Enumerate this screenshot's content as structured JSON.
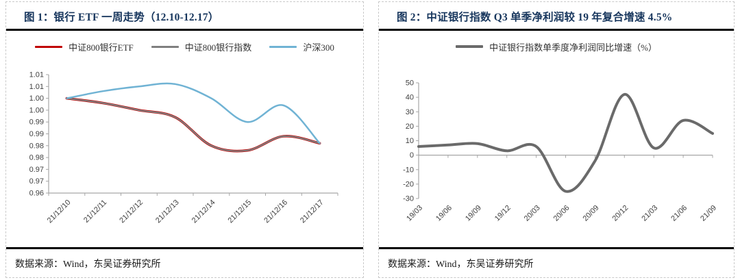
{
  "panels": [
    {
      "title": "图 1：银行 ETF 一周走势（12.10-12.17）",
      "source": "数据来源：Wind，东吴证券研究所",
      "legend": [
        {
          "label": "中证800银行ETF",
          "color": "#C00000"
        },
        {
          "label": "中证800银行指数",
          "color": "#7F7F7F"
        },
        {
          "label": "沪深300",
          "color": "#70B3D4"
        }
      ]
    },
    {
      "title": "图 2：中证银行指数 Q3 单季净利润较 19 年复合增速 4.5%",
      "source": "数据来源：Wind，东吴证券研究所",
      "legend": [
        {
          "label": "中证银行指数单季度净利润同比增速（%）",
          "color": "#6A6A6A"
        }
      ]
    }
  ],
  "chart_data": [
    {
      "type": "line",
      "title": "银行 ETF 一周走势（12.10-12.17）",
      "categories": [
        "21/12/10",
        "21/12/11",
        "21/12/12",
        "21/12/13",
        "21/12/14",
        "21/12/15",
        "21/12/16",
        "21/12/17"
      ],
      "series": [
        {
          "name": "中证800银行ETF",
          "color": "#C00000",
          "values": [
            1.0,
            0.998,
            0.995,
            0.992,
            0.98,
            0.978,
            0.984,
            0.981
          ]
        },
        {
          "name": "中证800银行指数",
          "color": "#7F7F7F",
          "values": [
            1.0,
            0.998,
            0.995,
            0.992,
            0.98,
            0.978,
            0.984,
            0.981
          ]
        },
        {
          "name": "沪深300",
          "color": "#70B3D4",
          "values": [
            1.0,
            1.003,
            1.005,
            1.006,
            1.0,
            0.99,
            0.997,
            0.981
          ]
        }
      ],
      "ylim": [
        0.96,
        1.01
      ],
      "ytick_step": 0.005,
      "ytick_labels": [
        "1.01",
        "1.01",
        "1.00",
        "1.00",
        "0.99",
        "0.99",
        "0.98",
        "0.98",
        "0.97",
        "0.97",
        "0.96"
      ],
      "smooth": true,
      "grid": false,
      "legend_position": "top",
      "xlabel": "",
      "ylabel": ""
    },
    {
      "type": "line",
      "title": "中证银行指数 Q3 单季净利润较 19 年复合增速 4.5%",
      "categories": [
        "19/03",
        "19/06",
        "19/09",
        "19/12",
        "20/03",
        "20/06",
        "20/09",
        "20/12",
        "21/03",
        "21/06",
        "21/09"
      ],
      "series": [
        {
          "name": "中证银行指数单季度净利润同比增速（%）",
          "color": "#6A6A6A",
          "values": [
            6,
            7,
            8,
            3,
            6,
            -25,
            -4,
            42,
            5,
            24,
            15
          ]
        }
      ],
      "ylim": [
        -30,
        50
      ],
      "ytick_step": 10,
      "ytick_labels": [
        "50",
        "40",
        "30",
        "20",
        "10",
        "0",
        "-10",
        "-20",
        "-30"
      ],
      "zero_line": true,
      "smooth": true,
      "grid": false,
      "legend_position": "top",
      "xlabel": "",
      "ylabel": ""
    }
  ]
}
